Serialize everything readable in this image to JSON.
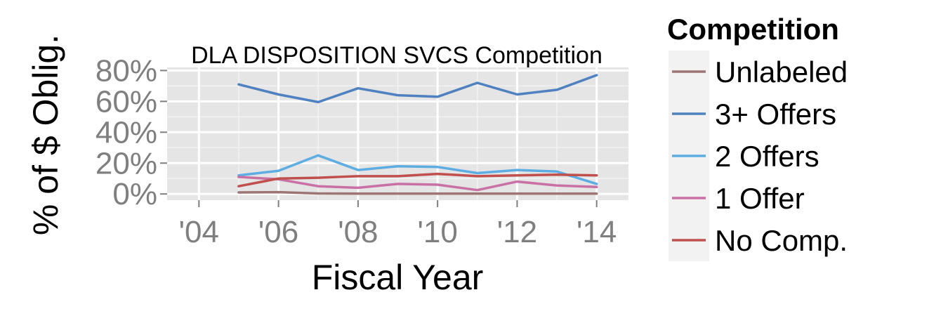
{
  "chart_data": {
    "type": "line",
    "title": "DLA DISPOSITION SVCS Competition",
    "xlabel": "Fiscal Year",
    "ylabel": "% of $ Oblig.",
    "x": [
      2005,
      2006,
      2007,
      2008,
      2009,
      2010,
      2011,
      2012,
      2013,
      2014
    ],
    "xlim": [
      2003.2,
      2014.8
    ],
    "ylim": [
      -4,
      82
    ],
    "x_ticks": [
      2004,
      2006,
      2008,
      2010,
      2012,
      2014
    ],
    "x_tick_labels": [
      "'04",
      "'06",
      "'08",
      "'10",
      "'12",
      "'14"
    ],
    "y_ticks": [
      0,
      20,
      40,
      60,
      80
    ],
    "y_tick_labels": [
      "0%",
      "20%",
      "40%",
      "60%",
      "80%"
    ],
    "grid": true,
    "legend": {
      "title": "Competition",
      "position": "right"
    },
    "series": [
      {
        "name": "Unlabeled",
        "color": "#9e7575",
        "values": [
          1,
          1.2,
          0.3,
          0.2,
          0.2,
          0.2,
          0.2,
          0.2,
          0.2,
          0.2
        ]
      },
      {
        "name": "3+ Offers",
        "color": "#4f81c0",
        "values": [
          71,
          64.5,
          59.5,
          68.5,
          64,
          63,
          72,
          64.5,
          67.5,
          77
        ]
      },
      {
        "name": "2 Offers",
        "color": "#5dade2",
        "values": [
          12,
          15,
          25,
          15.5,
          18,
          17.5,
          13.5,
          15.5,
          14.5,
          6.5
        ]
      },
      {
        "name": "1 Offer",
        "color": "#c970a5",
        "values": [
          11,
          9.5,
          5,
          4,
          6.5,
          6,
          2.5,
          8,
          5.5,
          4.5
        ]
      },
      {
        "name": "No Comp.",
        "color": "#c0504d",
        "values": [
          5,
          10,
          10.5,
          11.5,
          11.5,
          13,
          11.5,
          12,
          12.5,
          12
        ]
      }
    ]
  }
}
